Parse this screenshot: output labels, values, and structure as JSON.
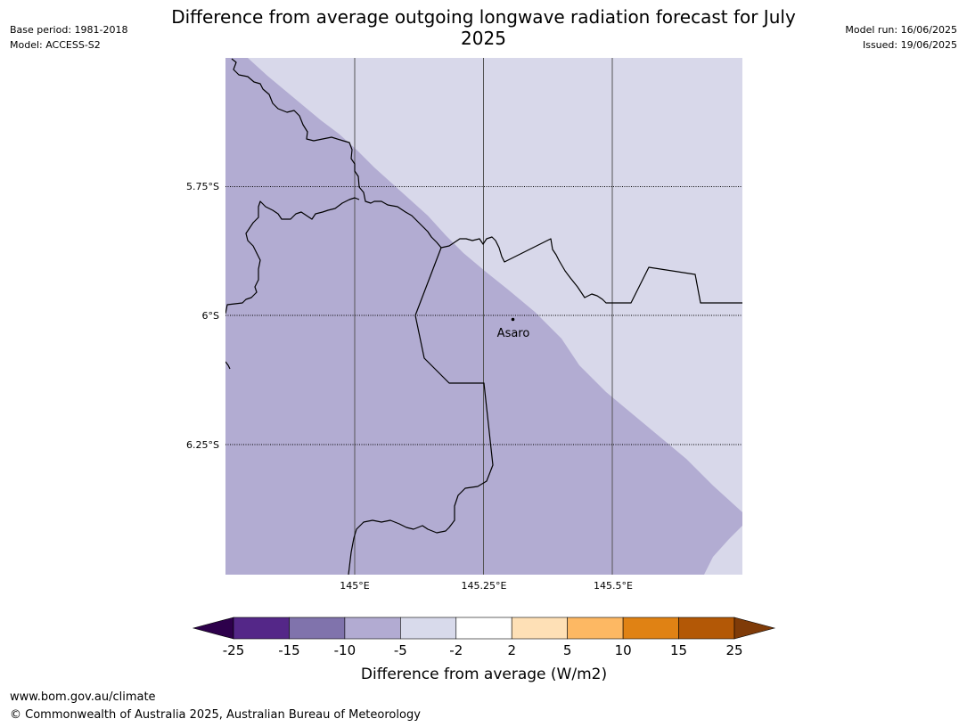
{
  "title": "Difference from average outgoing longwave radiation forecast for July 2025",
  "meta_left": {
    "base_period": "Base period: 1981-2018",
    "model": "Model: ACCESS-S2"
  },
  "meta_right": {
    "model_run": "Model run: 16/06/2025",
    "issued": "Issued: 19/06/2025"
  },
  "map": {
    "lat_labels": [
      "5.75°S",
      "6°S",
      "6.25°S"
    ],
    "lon_labels": [
      "145°E",
      "145.25°E",
      "145.5°E"
    ],
    "place": {
      "name": "Asaro"
    },
    "fill_colors": {
      "west": "#b2acd2",
      "east": "#d8d8ea"
    }
  },
  "colorbar": {
    "title": "Difference from average (W/m2)",
    "ticks": [
      "-25",
      "-15",
      "-10",
      "-5",
      "-2",
      "2",
      "5",
      "10",
      "15",
      "25"
    ],
    "colors": [
      "#2d004b",
      "#542788",
      "#8073ac",
      "#b2abd2",
      "#d8daeb",
      "#ffffff",
      "#fee0b6",
      "#fdb863",
      "#e08214",
      "#b35806",
      "#7f3b08"
    ]
  },
  "footer": {
    "url": "www.bom.gov.au/climate",
    "copyright": "© Commonwealth of Australia 2025, Australian Bureau of Meteorology"
  }
}
